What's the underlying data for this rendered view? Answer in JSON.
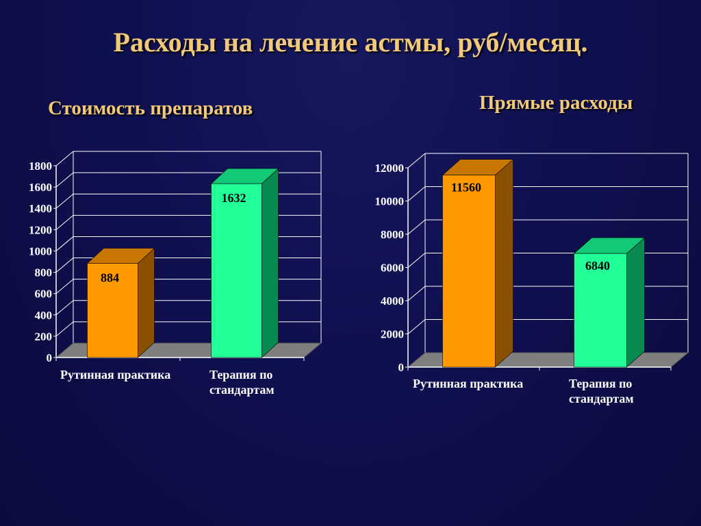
{
  "title": "Расходы на лечение астмы, руб/месяц.",
  "colors": {
    "background": "#0f1050",
    "title": "#f2c97a",
    "orange_front": "#ff9900",
    "orange_top": "#c77700",
    "orange_side": "#8a5000",
    "green_front": "#22ff99",
    "green_top": "#12c977",
    "green_side": "#078a50",
    "floor": "#7f7f7f",
    "text": "#ffffff"
  },
  "chart_data": [
    {
      "type": "bar",
      "title": "Стоимость препаратов",
      "categories": [
        [
          "Рутинная практика"
        ],
        [
          "Терапия по",
          "стандартам"
        ]
      ],
      "series": [
        {
          "values": [
            884,
            1632
          ]
        }
      ],
      "ylim": [
        0,
        1800
      ],
      "yticks": [
        0,
        200,
        400,
        600,
        800,
        1000,
        1200,
        1400,
        1600,
        1800
      ],
      "grid": true,
      "bar_colors": [
        "orange",
        "green"
      ],
      "data_labels": [
        "884",
        "1632"
      ]
    },
    {
      "type": "bar",
      "title": "Прямые расходы",
      "categories": [
        [
          "Рутинная практика"
        ],
        [
          "Терапия по",
          "стандартам"
        ]
      ],
      "series": [
        {
          "values": [
            11560,
            6840
          ]
        }
      ],
      "ylim": [
        0,
        12000
      ],
      "yticks": [
        0,
        2000,
        4000,
        6000,
        8000,
        10000,
        12000
      ],
      "grid": true,
      "bar_colors": [
        "orange",
        "green"
      ],
      "data_labels": [
        "11560",
        "6840"
      ]
    }
  ]
}
